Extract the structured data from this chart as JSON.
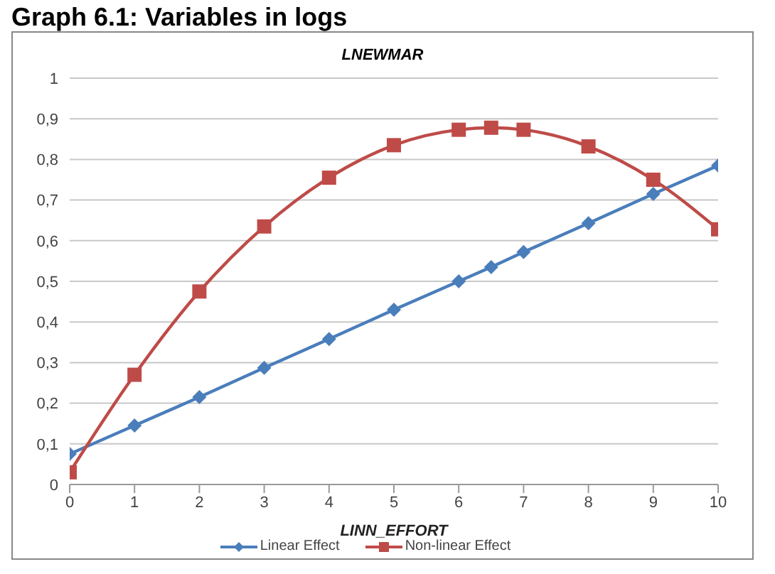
{
  "chart_data": {
    "type": "line",
    "title": "Graph 6.1: Variables in logs",
    "subtitle": "LNEWMAR",
    "xlabel": "LINN_EFFORT",
    "x": [
      0,
      1,
      2,
      3,
      4,
      5,
      6,
      6.5,
      7,
      8,
      9,
      10
    ],
    "series": [
      {
        "name": "Linear Effect",
        "color": "#4a7ebb",
        "marker": "diamond",
        "values": [
          0.075,
          0.145,
          0.215,
          0.287,
          0.358,
          0.43,
          0.5,
          0.535,
          0.572,
          0.643,
          0.715,
          0.785
        ]
      },
      {
        "name": "Non-linear Effect",
        "color": "#be4b48",
        "marker": "square",
        "values": [
          0.03,
          0.27,
          0.475,
          0.635,
          0.755,
          0.835,
          0.873,
          0.878,
          0.873,
          0.832,
          0.75,
          0.628
        ]
      }
    ],
    "xlim": [
      0,
      10
    ],
    "xticks": [
      0,
      1,
      2,
      3,
      4,
      5,
      6,
      7,
      8,
      9,
      10
    ],
    "ylim": [
      0,
      1
    ],
    "yticks": [
      0,
      {
        "value": 0.1,
        "label": "0,1"
      },
      {
        "value": 0.2,
        "label": "0,2"
      },
      {
        "value": 0.3,
        "label": "0,3"
      },
      {
        "value": 0.4,
        "label": "0,4"
      },
      {
        "value": 0.5,
        "label": "0,5"
      },
      {
        "value": 0.6,
        "label": "0,6"
      },
      {
        "value": 0.7,
        "label": "0,7"
      },
      {
        "value": 0.8,
        "label": "0,8"
      },
      {
        "value": 0.9,
        "label": "0,9"
      },
      1
    ],
    "grid": "y",
    "legend": "bottom",
    "line_style": "solid"
  }
}
